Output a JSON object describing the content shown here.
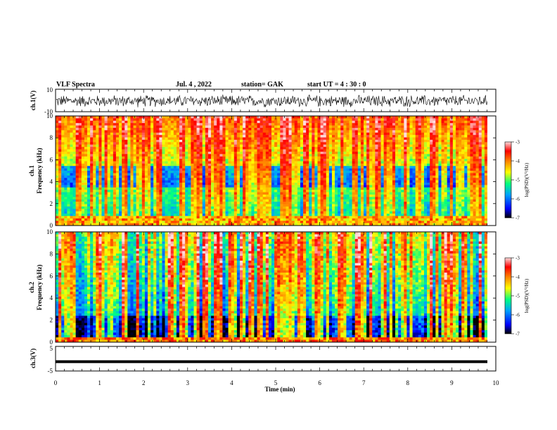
{
  "header": {
    "title": "VLF Spectra",
    "date": "Jul. 4 , 2022",
    "station": "station= GAK",
    "start": "start UT = 4 : 30 : 0"
  },
  "chart_data": [
    {
      "type": "line",
      "panel": "ch1-waveform",
      "ylabel": "ch.1(V)",
      "ylim": [
        -10,
        10
      ],
      "y_ticks": [
        "10",
        "-10"
      ],
      "xlim": [
        0,
        10
      ],
      "description_values": {
        "mean": 0,
        "amplitude_range": [
          -6,
          4
        ]
      }
    },
    {
      "type": "heatmap",
      "panel": "ch1-spectrogram",
      "ylabel_top": "ch.1",
      "ylabel": "Frequency (kHz)",
      "ylim": [
        0,
        10
      ],
      "y_ticks": [
        "0",
        "2",
        "4",
        "6",
        "8",
        "10"
      ],
      "xlim": [
        0,
        9.85
      ],
      "colorbar": {
        "label": "log(PSD)(V²/Hz)",
        "range": [
          -7,
          -3
        ],
        "ticks": [
          "-3",
          "-4",
          "-5",
          "-6",
          "-7"
        ],
        "colors": [
          "#000000",
          "#0000ff",
          "#00a0ff",
          "#00ff80",
          "#ffff00",
          "#ff8000",
          "#ff0000",
          "#ffffff"
        ]
      }
    },
    {
      "type": "heatmap",
      "panel": "ch2-spectrogram",
      "ylabel_top": "ch.2",
      "ylabel": "Frequency (kHz)",
      "ylim": [
        0,
        10
      ],
      "y_ticks": [
        "0",
        "2",
        "4",
        "6",
        "8",
        "10"
      ],
      "xlim": [
        0,
        9.85
      ],
      "colorbar": {
        "label": "log(PSD)(V²/Hz)",
        "range": [
          -7,
          -3
        ],
        "ticks": [
          "-3",
          "-4",
          "-5",
          "-6",
          "-7"
        ]
      }
    },
    {
      "type": "line",
      "panel": "ch3-waveform",
      "ylabel": "ch.3(V)",
      "ylim": [
        -5,
        5
      ],
      "y_ticks": [
        "5",
        "-5"
      ],
      "xlim": [
        0,
        10
      ],
      "constant_value": -1.2
    }
  ],
  "x_axis": {
    "label": "Time (min)",
    "ticks": [
      "0",
      "1",
      "2",
      "3",
      "4",
      "5",
      "6",
      "7",
      "8",
      "9",
      "10"
    ]
  }
}
